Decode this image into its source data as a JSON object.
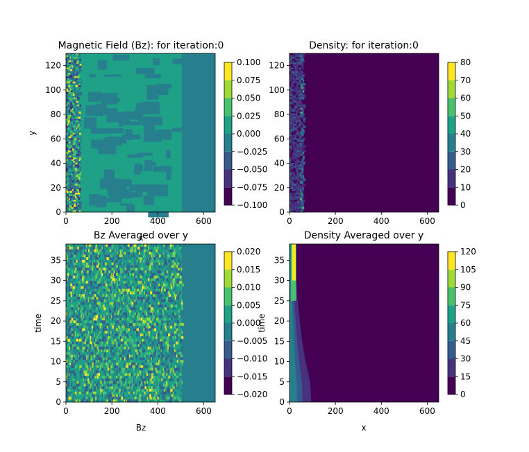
{
  "chart_data": [
    {
      "type": "heatmap",
      "title": "Magnetic Field (Bz): for iteration:0",
      "xlabel": "x",
      "ylabel": "y",
      "xlim": [
        0,
        650
      ],
      "ylim": [
        0,
        130
      ],
      "xticks": [
        "0",
        "200",
        "400",
        "600"
      ],
      "yticks": [
        "0",
        "20",
        "40",
        "60",
        "80",
        "100",
        "120"
      ],
      "colorbar": {
        "levels": [
          -0.1,
          -0.075,
          -0.05,
          -0.025,
          0.0,
          0.025,
          0.05,
          0.075,
          0.1
        ],
        "ticks": [
          "−0.100",
          "−0.075",
          "−0.050",
          "−0.025",
          "0.000",
          "0.025",
          "0.050",
          "0.075",
          "0.100"
        ]
      },
      "dominant_level": "0.000 to 0.025",
      "background_level": "0.000",
      "noisy_band_x": [
        0,
        60
      ],
      "field_region_x": [
        0,
        505
      ]
    },
    {
      "type": "heatmap",
      "title": "Density: for iteration:0",
      "xlabel": "",
      "ylabel": "",
      "xlim": [
        0,
        650
      ],
      "ylim": [
        0,
        130
      ],
      "xticks": [
        "0",
        "200",
        "400",
        "600"
      ],
      "yticks": [
        "0",
        "20",
        "40",
        "60",
        "80",
        "100",
        "120"
      ],
      "colorbar": {
        "levels": [
          0,
          10,
          20,
          30,
          40,
          50,
          60,
          70,
          80
        ],
        "ticks": [
          "0",
          "10",
          "20",
          "30",
          "40",
          "50",
          "60",
          "70",
          "80"
        ]
      },
      "dense_band_x": [
        0,
        60
      ],
      "background_level": "0 to 10"
    },
    {
      "type": "heatmap",
      "title": "Bz Averaged over y",
      "xlabel": "Bz",
      "ylabel": "time",
      "xlim": [
        0,
        650
      ],
      "ylim": [
        0,
        39
      ],
      "xticks": [
        "0",
        "200",
        "400",
        "600"
      ],
      "yticks": [
        "0",
        "5",
        "10",
        "15",
        "20",
        "25",
        "30",
        "35"
      ],
      "colorbar": {
        "levels": [
          -0.02,
          -0.015,
          -0.01,
          -0.005,
          0.0,
          0.005,
          0.01,
          0.015,
          0.02
        ],
        "ticks": [
          "−0.020",
          "−0.015",
          "−0.010",
          "−0.005",
          "0.000",
          "0.005",
          "0.010",
          "0.015",
          "0.020"
        ]
      },
      "field_region_x": [
        0,
        505
      ]
    },
    {
      "type": "heatmap",
      "title": "Density Averaged over y",
      "xlabel": "x",
      "ylabel": "time",
      "xlim": [
        0,
        650
      ],
      "ylim": [
        0,
        39
      ],
      "xticks": [
        "0",
        "200",
        "400",
        "600"
      ],
      "yticks": [
        "0",
        "5",
        "10",
        "15",
        "20",
        "25",
        "30",
        "35"
      ],
      "colorbar": {
        "levels": [
          0,
          15,
          30,
          45,
          60,
          75,
          90,
          105,
          120
        ],
        "ticks": [
          "0",
          "15",
          "30",
          "45",
          "60",
          "75",
          "90",
          "105",
          "120"
        ]
      },
      "front_x_at_time": [
        [
          0,
          95
        ],
        [
          5,
          90
        ],
        [
          10,
          70
        ],
        [
          15,
          55
        ],
        [
          20,
          45
        ],
        [
          25,
          35
        ],
        [
          30,
          30
        ],
        [
          35,
          25
        ],
        [
          39,
          22
        ]
      ],
      "peak_x": [
        0,
        35
      ]
    }
  ],
  "colors": {
    "viridis8": [
      "#440154",
      "#46327e",
      "#365c8d",
      "#277f8e",
      "#1fa187",
      "#4ac16d",
      "#a0da39",
      "#fde725"
    ]
  }
}
